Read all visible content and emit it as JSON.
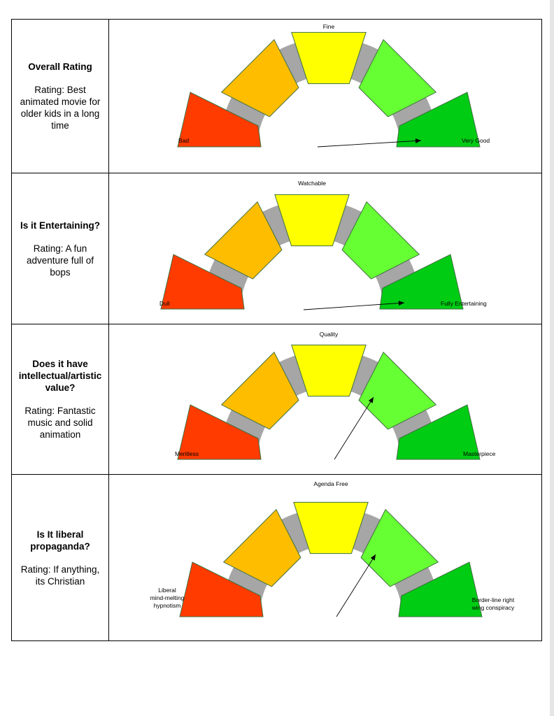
{
  "colors": {
    "red": "#ff3b00",
    "orange": "#ffbd00",
    "yellow": "#ffff00",
    "lightgreen": "#66ff33",
    "green": "#00cc14",
    "track": "#a6a6a6"
  },
  "rows": [
    {
      "question": "Overall Rating",
      "rating": "Rating: Best animated movie for older kids in a long time",
      "labels": {
        "left": "Bad",
        "top": "Fine",
        "right": "Very Good"
      },
      "needle_segment": 5
    },
    {
      "question": "Is it Entertaining?",
      "rating": "Rating: A fun adventure full of bops",
      "labels": {
        "left": "Dull",
        "top": "Watchable",
        "right": "Fully Entertaining"
      },
      "needle_segment": 5
    },
    {
      "question": "Does it have intellectual/artistic value?",
      "rating": "Rating: Fantastic music and solid animation",
      "labels": {
        "left": "Meritless",
        "top": "Quality",
        "right": "Masterpiece"
      },
      "needle_segment": 4
    },
    {
      "question": "Is It liberal propaganda?",
      "rating": "Rating:  If anything, its Christian",
      "labels": {
        "left": [
          "Liberal",
          "mind-melting",
          "hypnotism"
        ],
        "top": "Agenda Free",
        "right": [
          "Border-line right",
          "wing conspiracy"
        ]
      },
      "needle_segment": 4
    }
  ]
}
